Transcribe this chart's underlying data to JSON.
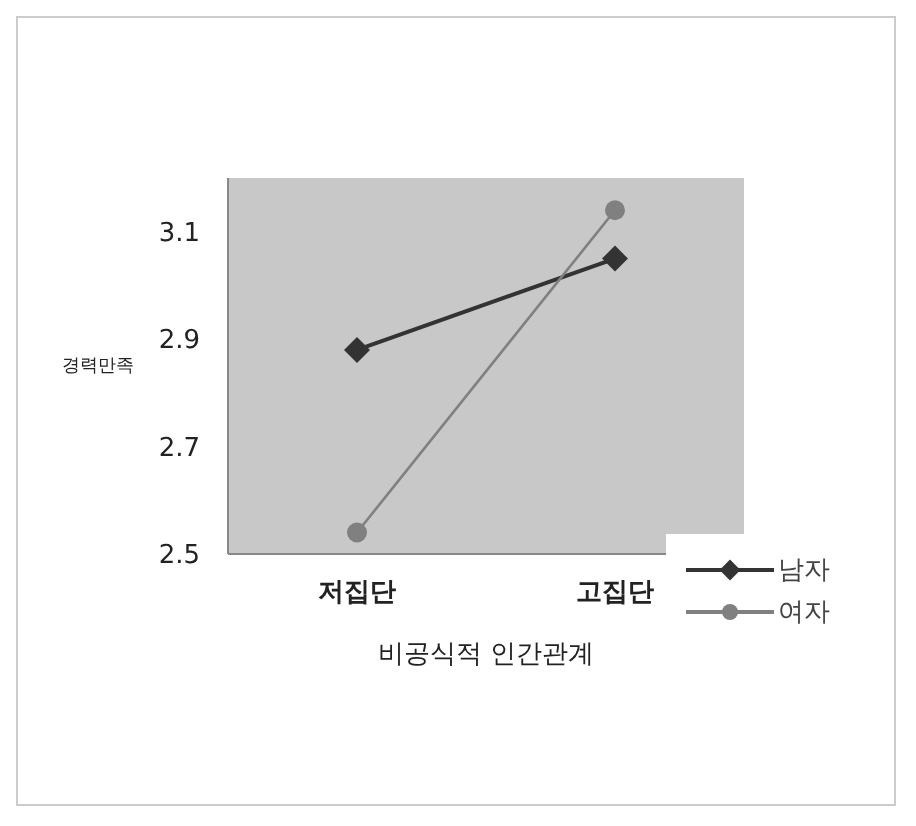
{
  "chart_data": {
    "type": "line",
    "xlabel": "비공식적 인간관계",
    "ylabel": "경력만족",
    "categories": [
      "저집단",
      "고집단"
    ],
    "series": [
      {
        "name": "남자",
        "color": "#333333",
        "values": [
          2.88,
          3.05
        ],
        "marker": "diamond"
      },
      {
        "name": "여자",
        "color": "#808080",
        "values": [
          2.54,
          3.14
        ],
        "marker": "circle"
      }
    ],
    "ylim": [
      2.5,
      3.2
    ],
    "yticks": [
      2.5,
      2.7,
      2.9,
      3.1
    ],
    "grid": false,
    "legend": "bottom right"
  }
}
